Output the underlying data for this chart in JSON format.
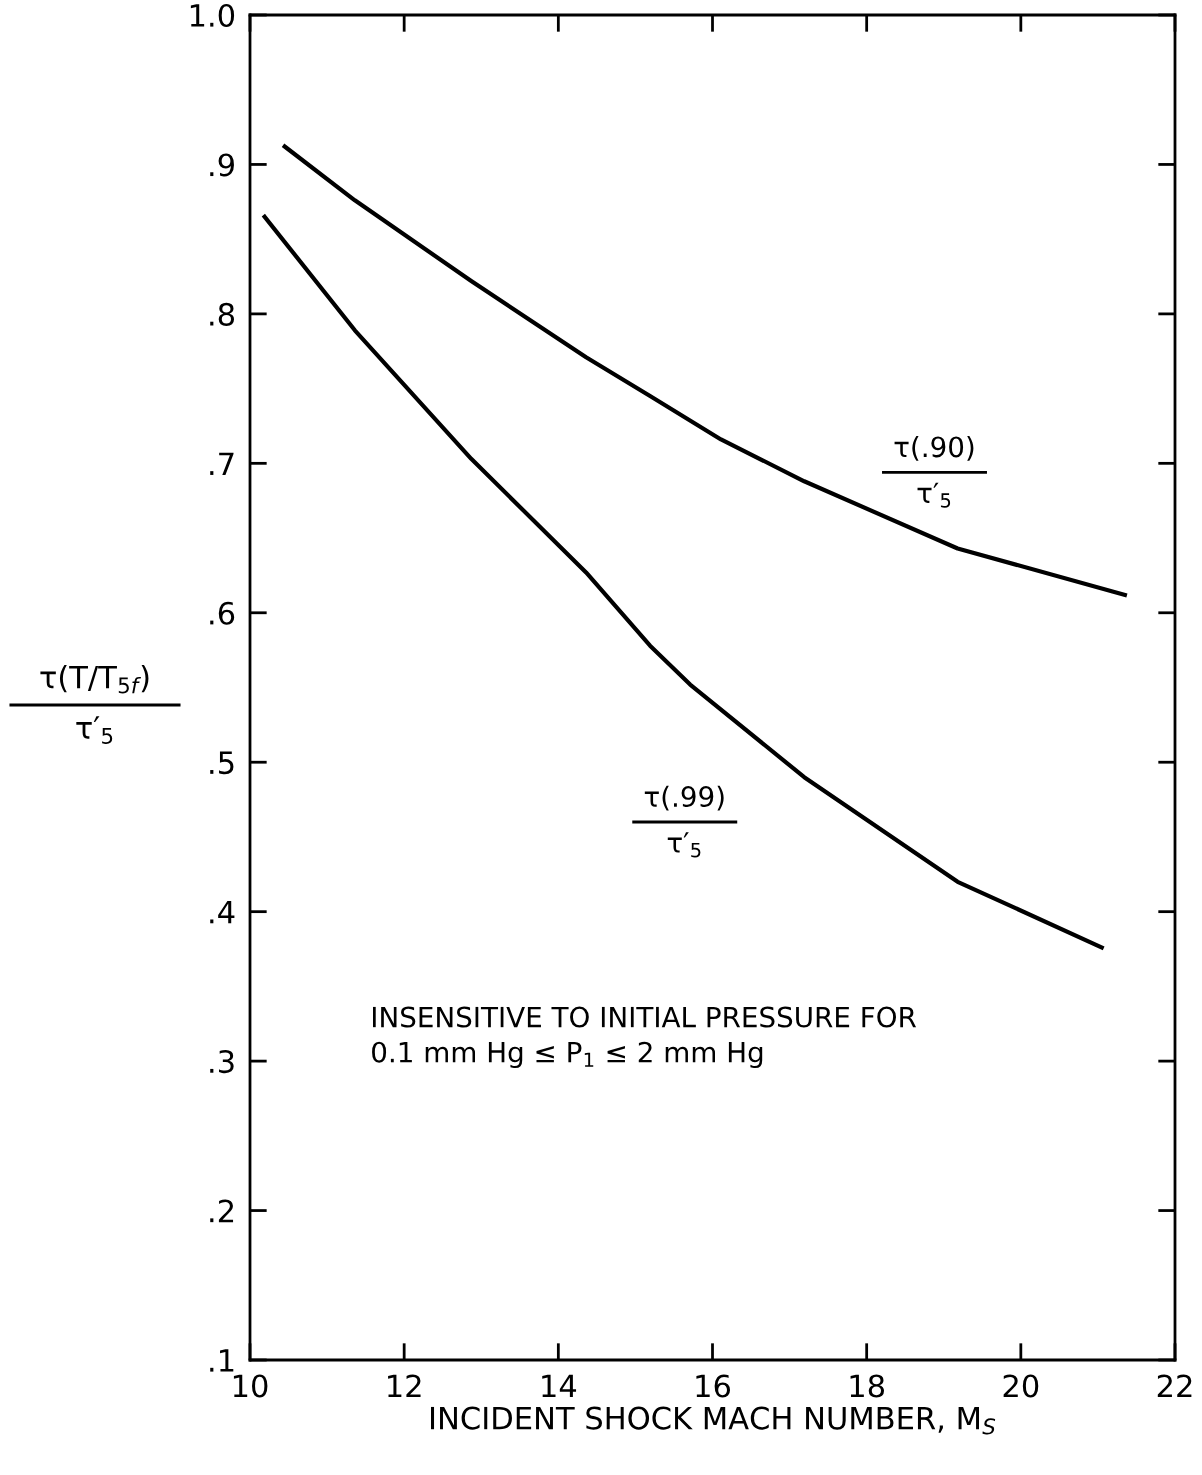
{
  "chart_data": {
    "type": "line",
    "xlabel": "INCIDENT SHOCK MACH NUMBER, M$_{S}$",
    "ylabel": "τ(T/T$_{5f}$)\nτ′$_{5}$",
    "series": [
      {
        "name": "τ(.90)\nτ′$_{5}$",
        "color": "#000000",
        "x": [
          10.45,
          11.36,
          12.87,
          14.36,
          15.19,
          16.11,
          17.19,
          19.18,
          21.35
        ],
        "values": [
          0.912,
          0.876,
          0.822,
          0.771,
          0.745,
          0.716,
          0.688,
          0.643,
          0.612
        ]
      },
      {
        "name": "τ(.99)\nτ′$_{5}$",
        "color": "#000000",
        "x": [
          10.19,
          11.36,
          12.87,
          14.36,
          15.19,
          15.71,
          17.19,
          19.18,
          21.05
        ],
        "values": [
          0.865,
          0.789,
          0.703,
          0.627,
          0.578,
          0.552,
          0.49,
          0.42,
          0.376
        ]
      }
    ],
    "xlim": [
      10,
      22
    ],
    "xticks": [
      10,
      12,
      14,
      16,
      18,
      20,
      22
    ],
    "ylim": [
      0.1,
      1.0
    ],
    "yticks": [
      {
        "value": 0.1,
        "label": ".1"
      },
      {
        "value": 0.2,
        "label": ".2"
      },
      {
        "value": 0.3,
        "label": ".3"
      },
      {
        "value": 0.4,
        "label": ".4"
      },
      {
        "value": 0.5,
        "label": ".5"
      },
      {
        "value": 0.6,
        "label": ".6"
      },
      {
        "value": 0.7,
        "label": ".7"
      },
      {
        "value": 0.8,
        "label": ".8"
      },
      {
        "value": 0.9,
        "label": ".9"
      },
      {
        "value": 1.0,
        "label": "1.0"
      }
    ],
    "annotations": [
      "INSENSITIVE TO INITIAL PRESSURE FOR\n0.1 mm Hg ≤ P$_{1}$ ≤ 2 mm Hg"
    ],
    "grid": false,
    "legend": false,
    "marker": "none",
    "line_style": "solid"
  }
}
